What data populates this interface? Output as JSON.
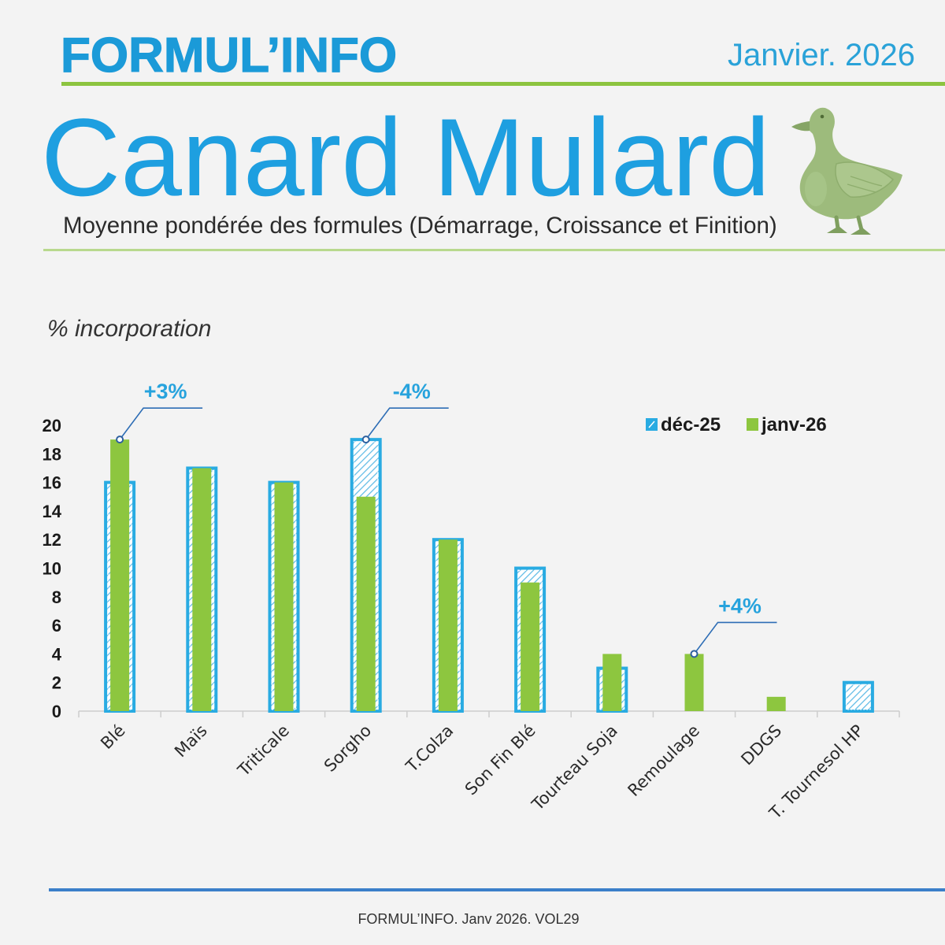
{
  "header": {
    "brand": "FORMUL’INFO",
    "date": "Janvier. 2026",
    "title": "Canard Mulard",
    "subtitle": "Moyenne pondérée des formules (Démarrage, Croissance et Finition)",
    "illustration": "duck-icon"
  },
  "theme": {
    "brand_blue": "#1b9ad8",
    "title_blue": "#1e9fe0",
    "rule_green": "#8cc43f",
    "rule_light_green": "#b8d98e",
    "footer_blue": "#3b7fc9",
    "annotation_blue": "#27a3dd"
  },
  "chart_data": {
    "type": "bar",
    "ylabel": "% incorporation",
    "categories": [
      "Blé",
      "Maïs",
      "Triticale",
      "Sorgho",
      "T.Colza",
      "Son Fin Blé",
      "Tourteau Soja",
      "Remoulage",
      "DDGS",
      "T. Tournesol HP"
    ],
    "series": [
      {
        "name": "déc-25",
        "color": "#29abe2",
        "values": [
          16,
          17,
          16,
          19,
          12,
          10,
          3,
          0,
          0,
          2
        ]
      },
      {
        "name": "janv-26",
        "color": "#8dc63f",
        "values": [
          19,
          17,
          16,
          15,
          12,
          9,
          4,
          4,
          1,
          0
        ]
      }
    ],
    "ylim": [
      0,
      20
    ],
    "yticks": [
      0,
      2,
      4,
      6,
      8,
      10,
      12,
      14,
      16,
      18,
      20
    ],
    "grid": false,
    "legend_position": "top-right",
    "annotations": [
      {
        "category": "Blé",
        "label": "+3%"
      },
      {
        "category": "Sorgho",
        "label": "-4%"
      },
      {
        "category": "Remoulage",
        "label": "+4%"
      }
    ]
  },
  "footer": {
    "text": "FORMUL’INFO. Janv 2026. VOL29"
  }
}
